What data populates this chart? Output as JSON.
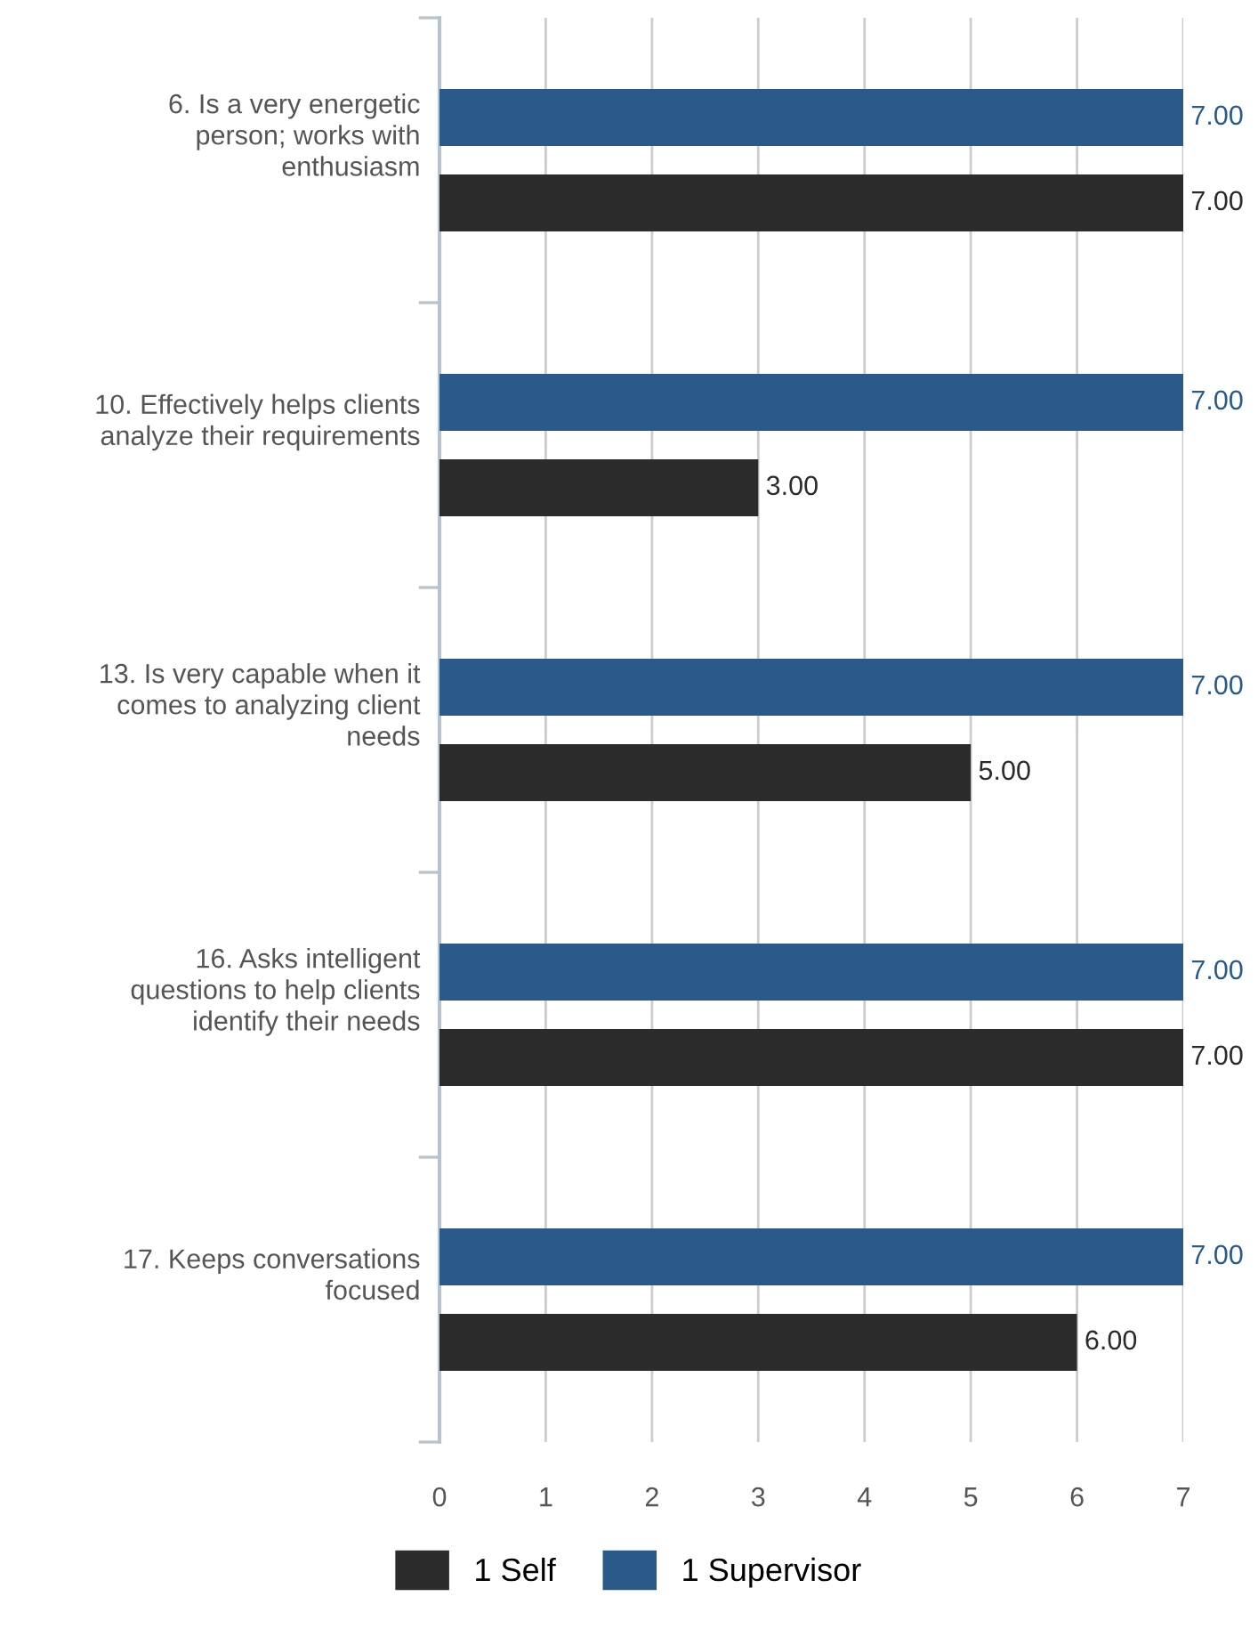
{
  "chart_data": {
    "type": "bar",
    "orientation": "horizontal",
    "categories": [
      "6. Is a very energetic\nperson; works with\nenthusiasm",
      "10. Effectively helps clients\nanalyze their requirements",
      "13. Is very capable when it\ncomes to analyzing client\nneeds",
      "16. Asks intelligent\nquestions to help clients\nidentify their needs",
      "17. Keeps conversations\nfocused"
    ],
    "series": [
      {
        "name": "1 Self",
        "color": "#2b2b2b",
        "values": [
          7,
          3,
          5,
          7,
          6
        ],
        "value_labels": [
          "7.00",
          "3.00",
          "5.00",
          "7.00",
          "6.00"
        ]
      },
      {
        "name": "1 Supervisor",
        "color": "#2a5a87",
        "values": [
          7,
          7,
          7,
          7,
          7
        ],
        "value_labels": [
          "7.00",
          "7.00",
          "7.00",
          "7.00",
          "7.00"
        ]
      }
    ],
    "xlim": [
      0,
      7
    ],
    "xticks": [
      0,
      1,
      2,
      3,
      4,
      5,
      6,
      7
    ],
    "grid": "x",
    "legend": "bottom"
  }
}
